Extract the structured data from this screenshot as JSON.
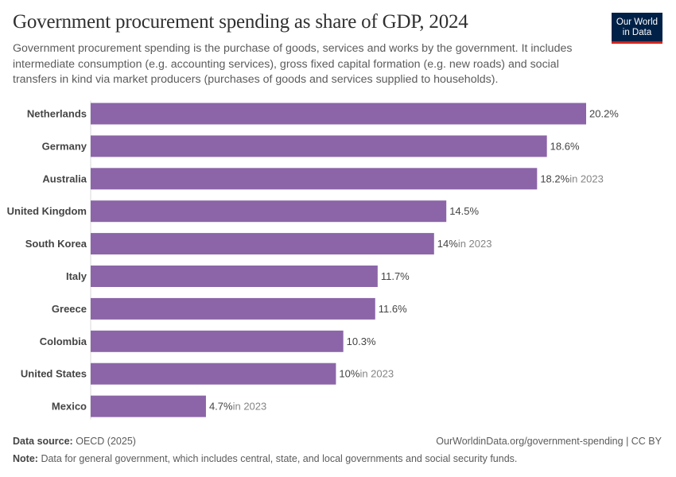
{
  "title": "Government procurement spending as share of GDP, 2024",
  "subtitle": "Government procurement spending is the purchase of goods, services and works by the government. It includes intermediate consumption (e.g. accounting services), gross fixed capital formation (e.g. new roads) and social transfers in kind via market producers (purchases of goods and services supplied to households).",
  "logo": "Our World in Data",
  "footer": {
    "source_label": "Data source:",
    "source": "OECD (2025)",
    "url": "OurWorldinData.org/government-spending | CC BY",
    "note_label": "Note:",
    "note": "Data for general government, which includes central, state, and local governments and social security funds."
  },
  "colors": {
    "bar": "#8b65a8",
    "label": "#444444",
    "year_note": "#858585"
  },
  "chart_data": {
    "type": "bar",
    "orientation": "horizontal",
    "unit": "%",
    "categories": [
      "Netherlands",
      "Germany",
      "Australia",
      "United Kingdom",
      "South Korea",
      "Italy",
      "Greece",
      "Colombia",
      "United States",
      "Mexico"
    ],
    "values": [
      20.2,
      18.6,
      18.2,
      14.5,
      14,
      11.7,
      11.6,
      10.3,
      10,
      4.7
    ],
    "value_labels": [
      "20.2%",
      "18.6%",
      "18.2%",
      "14.5%",
      "14%",
      "11.7%",
      "11.6%",
      "10.3%",
      "10%",
      "4.7%"
    ],
    "year_notes": [
      "",
      "",
      "in 2023",
      "",
      "in 2023",
      "",
      "",
      "",
      "in 2023",
      "in 2023"
    ]
  }
}
